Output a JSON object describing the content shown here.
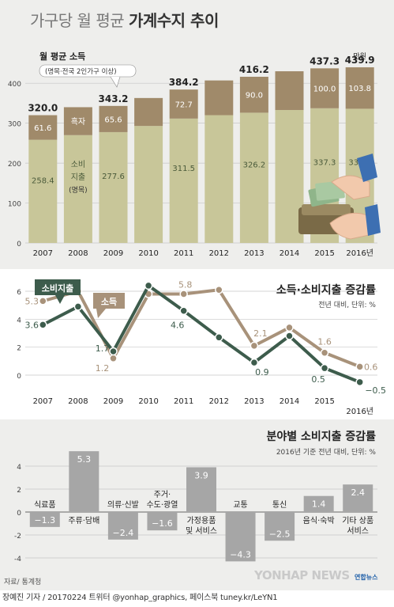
{
  "title_light": "가구당 월 평균",
  "title_bold": "가계수지 추이",
  "source": "자료/ 통계청",
  "credit": "장예진 기자 / 20170224 트위터 @yonhap_graphics, 페이스북 tuney.kr/LeYN1",
  "logo": "YONHAP NEWS",
  "logo_small": "연합뉴스",
  "chart_data": [
    {
      "type": "bar",
      "unit": "만원",
      "legend_title": "월 평균 소득",
      "legend_sub": "(명목·전국 2인가구 이상)",
      "surplus_label": "흑자",
      "spend_label_1": "소비",
      "spend_label_2": "지출",
      "spend_label_3": "(명목)",
      "categories": [
        "2007",
        "2008",
        "2009",
        "2010",
        "2011",
        "2012",
        "2013",
        "2014",
        "2015",
        "2016년"
      ],
      "ylim": [
        0,
        440
      ],
      "yticks": [
        "0",
        "100",
        "200",
        "300",
        "400"
      ],
      "series": [
        {
          "name": "소비지출",
          "values": [
            258.4,
            270,
            277.6,
            293,
            311.5,
            320,
            326.2,
            333,
            337.3,
            336.1
          ]
        },
        {
          "name": "흑자",
          "values": [
            61.6,
            70,
            65.6,
            70,
            72.7,
            87,
            90,
            97,
            100.0,
            103.8
          ]
        }
      ],
      "spending_labels": [
        "258.4",
        "",
        "277.6",
        "",
        "311.5",
        "",
        "326.2",
        "",
        "337.3",
        "336.1"
      ],
      "surplus_labels": [
        "61.6",
        "",
        "65.6",
        "",
        "72.7",
        "",
        "90.0",
        "",
        "100.0",
        "103.8"
      ],
      "total_labels": [
        "320.0",
        "",
        "343.2",
        "",
        "384.2",
        "",
        "416.2",
        "",
        "437.3",
        "439.9"
      ]
    },
    {
      "type": "line",
      "title": "소득·소비지출 증감률",
      "subtitle": "전년 대비, 단위: %",
      "categories": [
        "2007",
        "2008",
        "2009",
        "2010",
        "2011",
        "2012",
        "2013",
        "2014",
        "2015",
        "2016년"
      ],
      "ylim": [
        -1,
        7
      ],
      "yticks": [
        "0",
        "2",
        "4",
        "6"
      ],
      "series": [
        {
          "name": "소비지출",
          "color": "#3d5c4c",
          "values": [
            3.6,
            4.9,
            1.7,
            6.4,
            4.6,
            2.7,
            0.9,
            2.8,
            0.5,
            -0.5
          ],
          "labels": [
            "3.6",
            "",
            "1.7",
            "",
            "4.6",
            "",
            "0.9",
            "",
            "0.5",
            "−0.5"
          ]
        },
        {
          "name": "소득",
          "color": "#a8927a",
          "values": [
            5.3,
            6.0,
            1.2,
            5.8,
            5.8,
            6.1,
            2.1,
            3.4,
            1.6,
            0.6
          ],
          "labels": [
            "5.3",
            "",
            "1.2",
            "",
            "5.8",
            "",
            "2.1",
            "",
            "1.6",
            "0.6"
          ]
        }
      ]
    },
    {
      "type": "bar",
      "title": "분야별 소비지출 증감률",
      "subtitle": "2016년 기준 전년 대비, 단위: %",
      "categories": [
        "식료품",
        "주류·담배",
        "의류·신발",
        "주거·수도·광열",
        "가정용품 및 서비스",
        "교통",
        "통신",
        "음식·숙박",
        "기타 상품 서비스"
      ],
      "ylim": [
        -5,
        6
      ],
      "yticks": [
        "-4",
        "-2",
        "0",
        "2",
        "4"
      ],
      "values": [
        -1.3,
        5.3,
        -2.4,
        -1.6,
        3.9,
        -4.3,
        -2.5,
        1.4,
        2.4
      ],
      "value_labels": [
        "−1.3",
        "5.3",
        "−2.4",
        "−1.6",
        "3.9",
        "−4.3",
        "−2.5",
        "1.4",
        "2.4"
      ]
    }
  ]
}
